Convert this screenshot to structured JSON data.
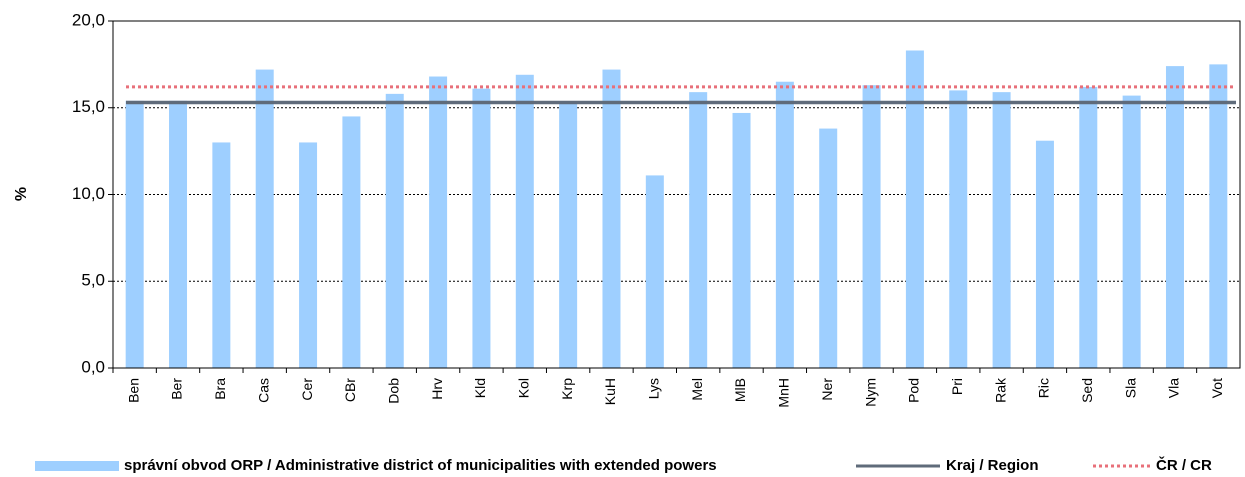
{
  "chart_data": {
    "type": "bar",
    "y_label": "%",
    "categories": [
      "Ben",
      "Ber",
      "Bra",
      "Cas",
      "Cer",
      "CBr",
      "Dob",
      "Hrv",
      "Kld",
      "Kol",
      "Krp",
      "KuH",
      "Lys",
      "Mel",
      "MlB",
      "MnH",
      "Ner",
      "Nym",
      "Pod",
      "Pri",
      "Rak",
      "Ric",
      "Sed",
      "Sla",
      "Vla",
      "Vot"
    ],
    "series": [
      {
        "name": "správní obvod ORP / Administrative district of municipalities with extended powers",
        "color": "#9ecfff",
        "values": [
          15.4,
          15.4,
          13.0,
          17.2,
          13.0,
          14.5,
          15.8,
          16.8,
          16.1,
          16.9,
          15.3,
          17.2,
          11.1,
          15.9,
          14.7,
          16.5,
          13.8,
          16.3,
          18.3,
          16.0,
          15.9,
          13.1,
          16.2,
          15.7,
          17.4,
          17.5
        ]
      }
    ],
    "reference_lines": [
      {
        "name": "Kraj / Region",
        "value": 15.3,
        "color": "#5f6b7a",
        "style": "solid"
      },
      {
        "name": "ČR / CR",
        "value": 16.2,
        "color": "#e8707a",
        "style": "dotted"
      }
    ],
    "ylim": [
      0,
      20
    ],
    "yticks": [
      {
        "value": 0,
        "label": "0,0"
      },
      {
        "value": 5,
        "label": "5,0"
      },
      {
        "value": 10,
        "label": "10,0"
      },
      {
        "value": 15,
        "label": "15,0"
      },
      {
        "value": 20,
        "label": "20,0"
      }
    ],
    "grid": true,
    "legend": "bottom"
  }
}
